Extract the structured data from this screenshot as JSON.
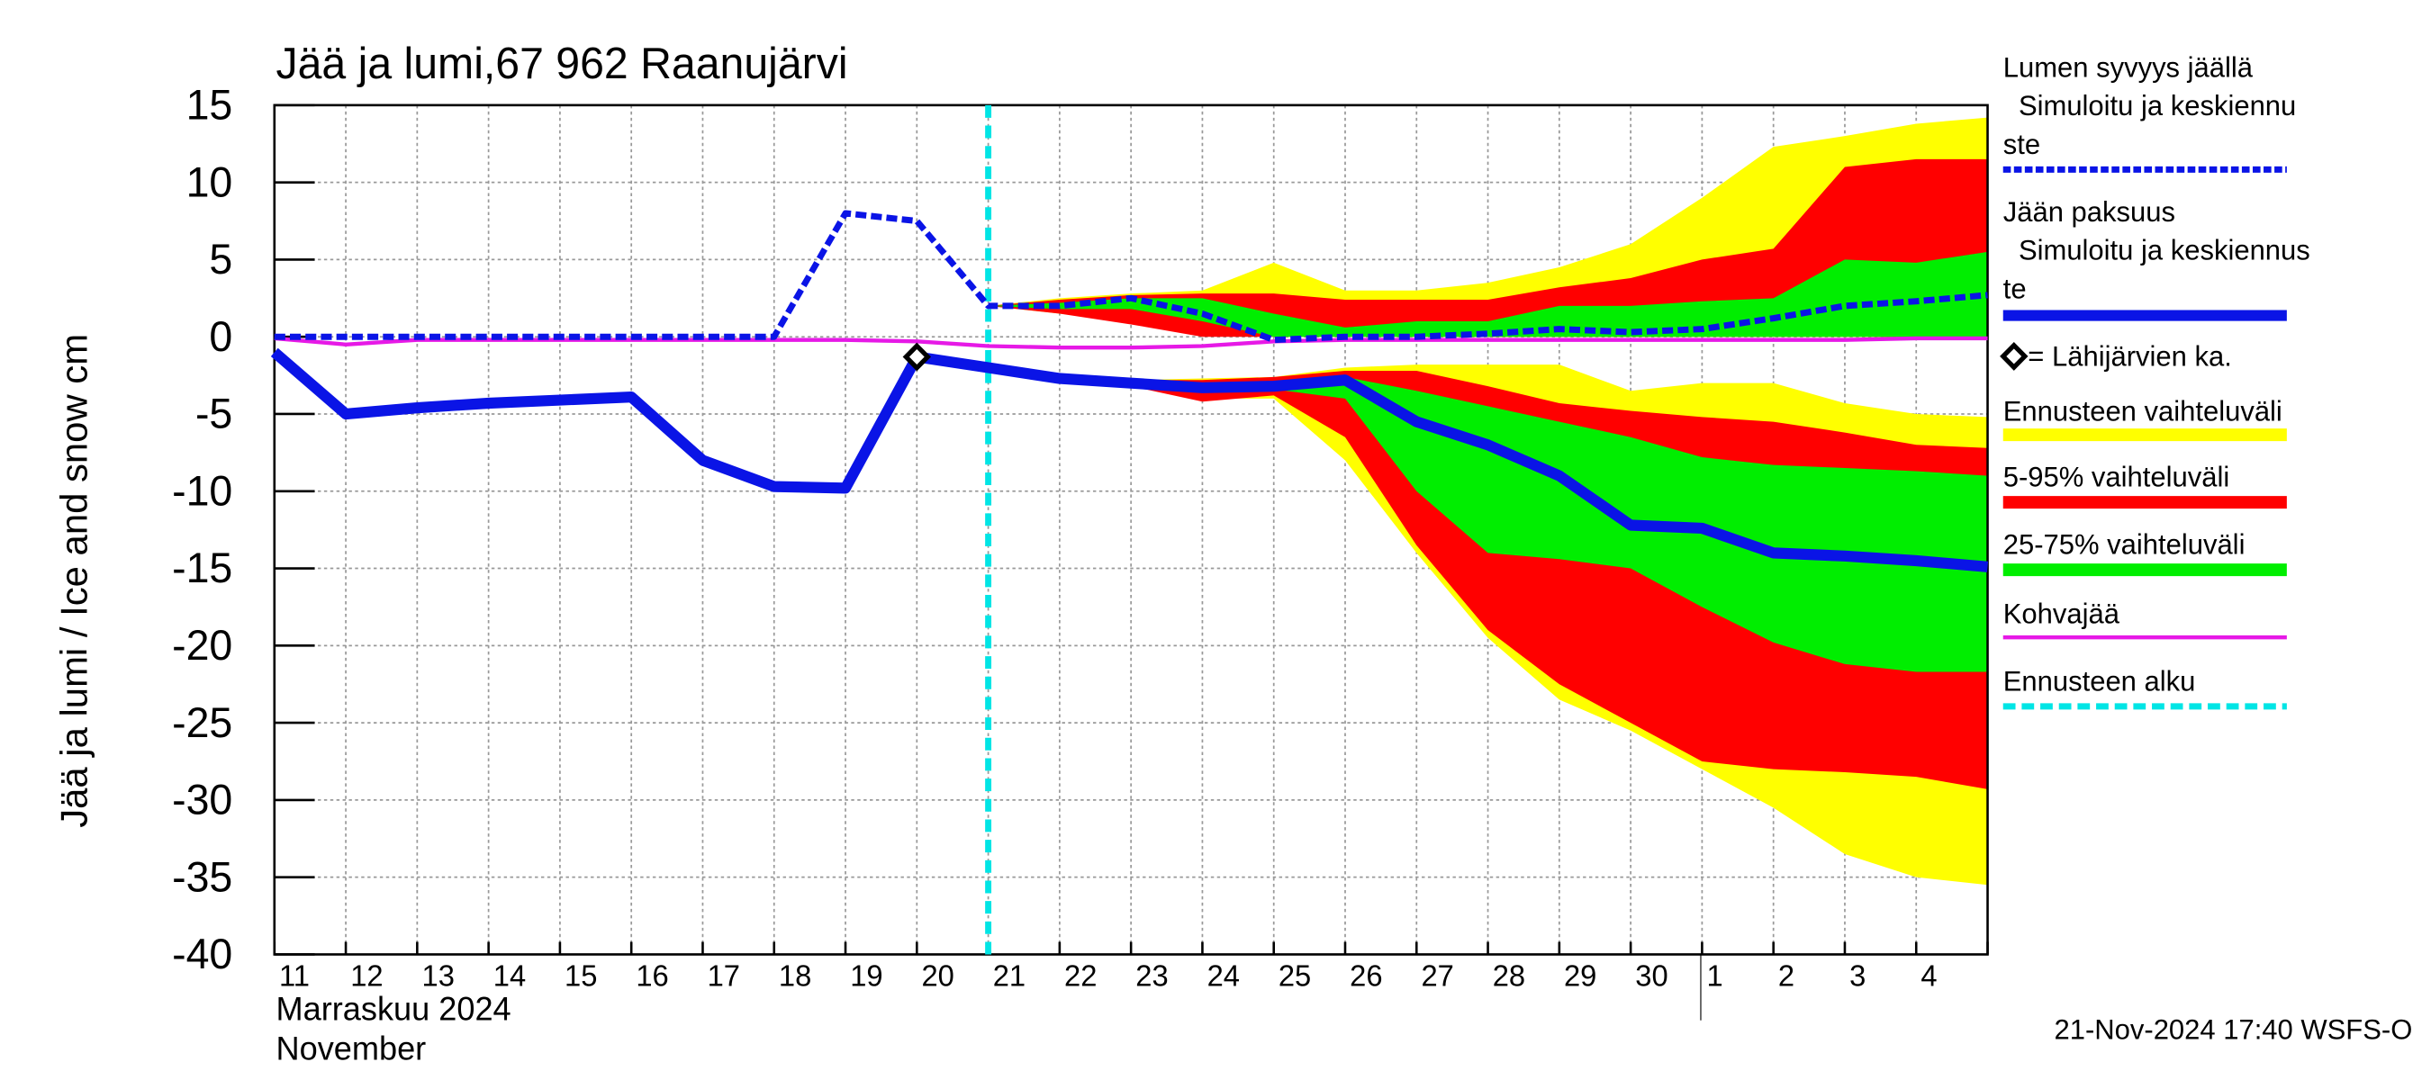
{
  "chart_data": {
    "type": "line",
    "title": "Jää ja lumi,67 962 Raanujärvi",
    "ylabel": "Jää ja lumi / Ice and snow    cm",
    "xlabel_lines": [
      "Marraskuu 2024",
      "November"
    ],
    "footer": "21-Nov-2024 17:40 WSFS-O",
    "categories": [
      "11",
      "12",
      "13",
      "14",
      "15",
      "16",
      "17",
      "18",
      "19",
      "20",
      "21",
      "22",
      "23",
      "24",
      "25",
      "26",
      "27",
      "28",
      "29",
      "30",
      "1",
      "2",
      "3",
      "4",
      null
    ],
    "ylim": [
      -40,
      15
    ],
    "yticks": [
      15,
      10,
      5,
      0,
      -5,
      -10,
      -15,
      -20,
      -25,
      -30,
      -35,
      -40
    ],
    "grid": true,
    "series": [
      {
        "name": [
          "Lumen syvyys jäällä",
          "Simuloitu ja keskiennu",
          "ste"
        ],
        "color": "#0a14e6",
        "style": "dashed",
        "width": 4,
        "values": [
          0,
          0,
          0,
          0,
          0,
          0,
          0,
          0,
          8,
          7.5,
          2,
          2,
          2.5,
          1.5,
          -0.2,
          0,
          0,
          0.2,
          0.5,
          0.3,
          0.5,
          1.2,
          2,
          2.3,
          2.7
        ]
      },
      {
        "name": [
          "Jään paksuus",
          "Simuloitu ja keskiennus",
          "te"
        ],
        "color": "#0a14e6",
        "style": "solid",
        "width": 7,
        "values": [
          -1,
          -5,
          -4.6,
          -4.3,
          -4.1,
          -3.9,
          -8,
          -9.7,
          -9.8,
          -1.3,
          -2,
          -2.7,
          -3,
          -3.3,
          -3.2,
          -2.8,
          -5.5,
          -7,
          -9,
          -12.2,
          -12.4,
          -14,
          -14.2,
          -14.5,
          -14.9
        ]
      },
      {
        "name": [
          "Kohvajää"
        ],
        "color": "#e619e6",
        "style": "solid",
        "width": 2.5,
        "values": [
          -0.1,
          -0.5,
          -0.2,
          -0.2,
          -0.2,
          -0.2,
          -0.2,
          -0.2,
          -0.2,
          -0.3,
          -0.6,
          -0.7,
          -0.7,
          -0.6,
          -0.3,
          -0.2,
          -0.2,
          -0.2,
          -0.2,
          -0.2,
          -0.2,
          -0.2,
          -0.2,
          -0.1,
          -0.1
        ]
      }
    ],
    "marker": {
      "name": [
        "= Lähijärvien ka."
      ],
      "values": [
        null,
        null,
        null,
        null,
        null,
        null,
        null,
        null,
        null,
        -1.3,
        null,
        null,
        null,
        null,
        null,
        null,
        null,
        null,
        null,
        null,
        null,
        null,
        null,
        null,
        null
      ]
    },
    "bands": [
      {
        "name": [
          "Ennusteen vaihteluväli"
        ],
        "color": "#ffff00",
        "snow": {
          "lower": [
            null,
            null,
            null,
            null,
            null,
            null,
            null,
            null,
            null,
            null,
            2,
            1.5,
            1,
            0.5,
            0,
            0,
            0,
            0,
            0,
            0,
            0,
            0,
            0,
            0,
            0
          ],
          "upper": [
            null,
            null,
            null,
            null,
            null,
            null,
            null,
            null,
            null,
            null,
            2,
            2.5,
            2.8,
            3,
            4.8,
            3,
            3,
            3.5,
            4.5,
            6,
            9,
            12.3,
            13,
            13.8,
            14.2
          ]
        },
        "ice": {
          "lower": [
            null,
            null,
            null,
            null,
            null,
            null,
            null,
            null,
            null,
            null,
            -2,
            -2.7,
            -3,
            -4,
            -4,
            -8,
            -14,
            -19.5,
            -23.5,
            -25.5,
            -28,
            -30.5,
            -33.5,
            -35,
            -35.5
          ],
          "upper": [
            null,
            null,
            null,
            null,
            null,
            null,
            null,
            null,
            null,
            null,
            -2,
            -2.7,
            -2.8,
            -2.7,
            -2.6,
            -2,
            -1.8,
            -1.8,
            -1.8,
            -3.5,
            -3,
            -3,
            -4.3,
            -5,
            -5.2
          ]
        }
      },
      {
        "name": [
          "5-95% vaihteluväli"
        ],
        "color": "#ff0000",
        "snow": {
          "lower": [
            null,
            null,
            null,
            null,
            null,
            null,
            null,
            null,
            null,
            null,
            2,
            1.5,
            0.8,
            0,
            0,
            0,
            0,
            0,
            0,
            0,
            0,
            0,
            0,
            0,
            0
          ],
          "upper": [
            null,
            null,
            null,
            null,
            null,
            null,
            null,
            null,
            null,
            null,
            2,
            2.4,
            2.7,
            2.8,
            2.8,
            2.4,
            2.4,
            2.4,
            3.2,
            3.8,
            5,
            5.7,
            11,
            11.5,
            11.5
          ]
        },
        "ice": {
          "lower": [
            null,
            null,
            null,
            null,
            null,
            null,
            null,
            null,
            null,
            null,
            -2,
            -2.7,
            -3.2,
            -4.2,
            -3.8,
            -6.5,
            -13.5,
            -19,
            -22.5,
            -25,
            -27.5,
            -28,
            -28.2,
            -28.5,
            -29.3
          ],
          "upper": [
            null,
            null,
            null,
            null,
            null,
            null,
            null,
            null,
            null,
            null,
            -2,
            -2.6,
            -2.8,
            -2.8,
            -2.6,
            -2.2,
            -2.2,
            -3.2,
            -4.3,
            -4.8,
            -5.2,
            -5.5,
            -6.2,
            -7,
            -7.2
          ]
        }
      },
      {
        "name": [
          "25-75% vaihteluväli"
        ],
        "color": "#00ee00",
        "snow": {
          "lower": [
            null,
            null,
            null,
            null,
            null,
            null,
            null,
            null,
            null,
            null,
            2,
            1.8,
            1.8,
            1,
            0,
            0,
            0,
            0,
            0,
            0,
            0,
            0,
            0,
            0,
            0
          ],
          "upper": [
            null,
            null,
            null,
            null,
            null,
            null,
            null,
            null,
            null,
            null,
            2,
            2.2,
            2.5,
            2.5,
            1.5,
            0.6,
            1,
            1,
            2,
            2,
            2.3,
            2.5,
            5,
            4.8,
            5.5
          ]
        },
        "ice": {
          "lower": [
            null,
            null,
            null,
            null,
            null,
            null,
            null,
            null,
            null,
            null,
            -2,
            -2.7,
            -3,
            -3.3,
            -3.4,
            -4,
            -10,
            -14,
            -14.4,
            -15,
            -17.5,
            -19.8,
            -21.2,
            -21.7,
            -21.7
          ],
          "upper": [
            null,
            null,
            null,
            null,
            null,
            null,
            null,
            null,
            null,
            null,
            -2,
            -2.7,
            -2.9,
            -3,
            -2.9,
            -2.6,
            -3.5,
            -4.5,
            -5.5,
            -6.5,
            -7.8,
            -8.3,
            -8.5,
            -8.7,
            -9
          ]
        }
      }
    ],
    "forecast_start": {
      "name": [
        "Ennusteen alku"
      ],
      "color": "#00e5e5",
      "index": 10
    }
  }
}
